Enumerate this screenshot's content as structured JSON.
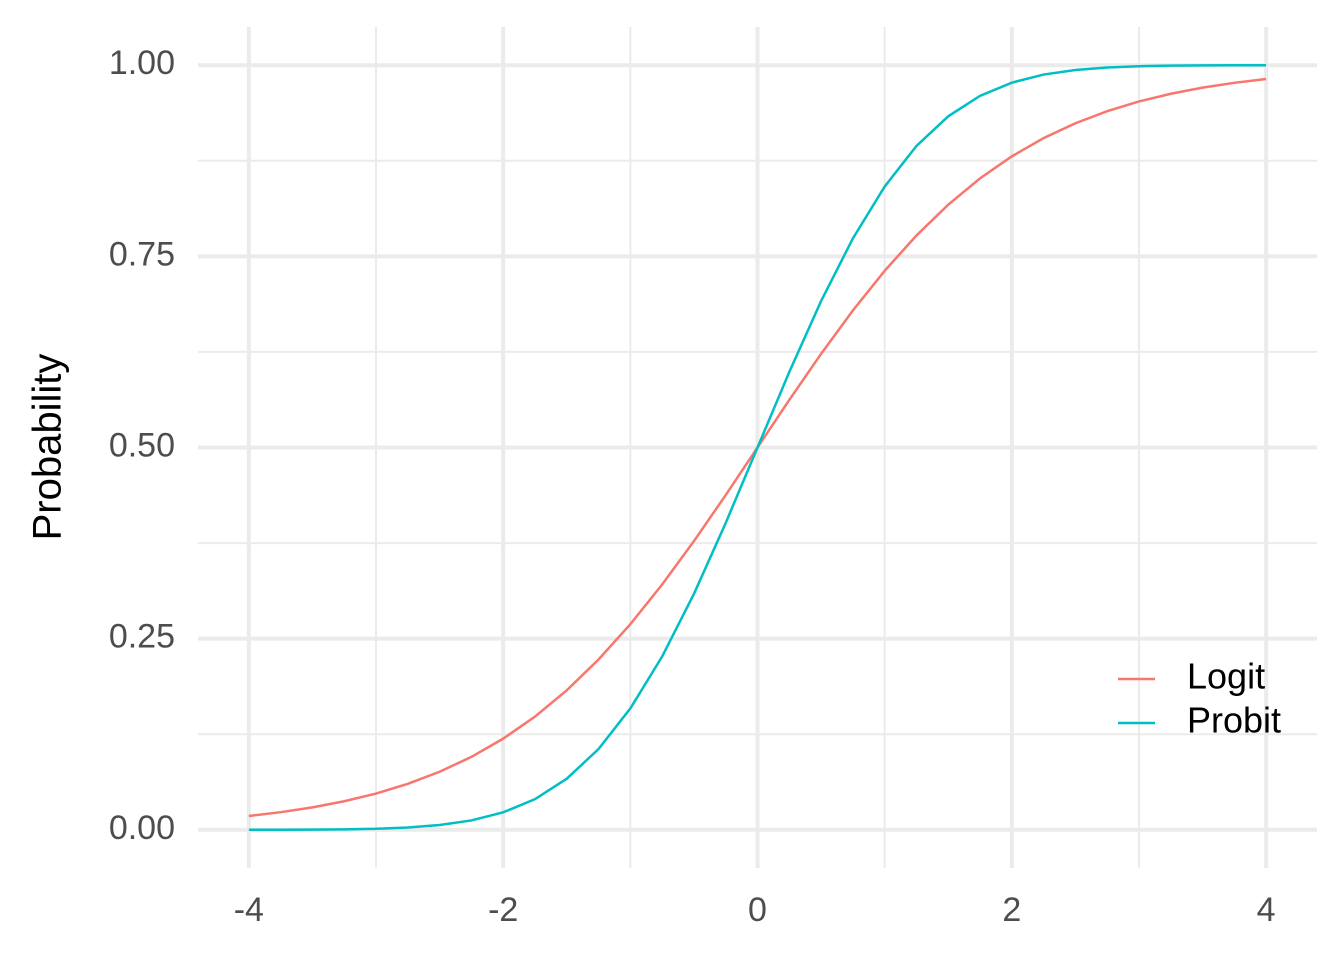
{
  "chart_data": {
    "type": "line",
    "y_label": "Probability",
    "x": [
      -4,
      -3.75,
      -3.5,
      -3.25,
      -3,
      -2.75,
      -2.5,
      -2.25,
      -2,
      -1.75,
      -1.5,
      -1.25,
      -1,
      -0.75,
      -0.5,
      -0.25,
      0,
      0.25,
      0.5,
      0.75,
      1,
      1.25,
      1.5,
      1.75,
      2,
      2.25,
      2.5,
      2.75,
      3,
      3.25,
      3.5,
      3.75,
      4
    ],
    "series": [
      {
        "name": "Logit",
        "color": "#f8766d",
        "values": [
          0.018,
          0.023,
          0.0293,
          0.0373,
          0.0474,
          0.0601,
          0.0759,
          0.0953,
          0.1192,
          0.148,
          0.1824,
          0.2227,
          0.2689,
          0.3208,
          0.3775,
          0.4378,
          0.5,
          0.5622,
          0.6225,
          0.6792,
          0.7311,
          0.7773,
          0.8176,
          0.852,
          0.8808,
          0.9047,
          0.9241,
          0.9399,
          0.9526,
          0.9627,
          0.9707,
          0.977,
          0.982
        ]
      },
      {
        "name": "Probit",
        "color": "#00bfc4",
        "values": [
          0.0,
          0.0001,
          0.0002,
          0.0006,
          0.0013,
          0.003,
          0.0062,
          0.0122,
          0.0228,
          0.0401,
          0.0668,
          0.1056,
          0.1587,
          0.2266,
          0.3085,
          0.4013,
          0.5,
          0.5987,
          0.6915,
          0.7734,
          0.8413,
          0.8944,
          0.9332,
          0.9599,
          0.9772,
          0.9878,
          0.9938,
          0.997,
          0.9987,
          0.9994,
          0.9998,
          0.9999,
          1.0
        ]
      }
    ],
    "xlim": [
      -4.4,
      4.4
    ],
    "xticks": [
      -4,
      -2,
      0,
      2,
      4
    ],
    "ylim": [
      -0.05,
      1.05
    ],
    "yticks": [
      {
        "value": 0,
        "label": "0.00"
      },
      {
        "value": 0.25,
        "label": "0.25"
      },
      {
        "value": 0.5,
        "label": "0.50"
      },
      {
        "value": 0.75,
        "label": "0.75"
      },
      {
        "value": 1,
        "label": "1.00"
      }
    ],
    "grid": true,
    "legend_position": "bottom-right"
  }
}
